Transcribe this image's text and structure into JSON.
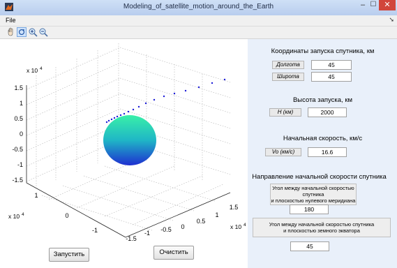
{
  "window": {
    "title": "Modeling_of_satellite_motion_around_the_Earth"
  },
  "menu": {
    "file": "File"
  },
  "toolbar": {
    "tools": [
      "hand-icon",
      "rotate3d-icon",
      "zoom-in-icon",
      "zoom-out-icon"
    ]
  },
  "launch_coords": {
    "heading": "Координаты запуска спутника, км",
    "longitude_label": "Долгота",
    "longitude_value": "45",
    "latitude_label": "Широта",
    "latitude_value": "45"
  },
  "height": {
    "heading": "Высота запуска, км",
    "label": "H (км)",
    "value": "2000"
  },
  "speed": {
    "heading": "Начальная скорость, км/с",
    "label": "Vo (км/с)",
    "value": "16.6"
  },
  "direction": {
    "heading": "Направление начальной скорости спутника",
    "meridian_line1": "Угол между начальной скоростью",
    "meridian_line2": "спутника",
    "meridian_line3": "и плоскостью нулевого меридиана",
    "meridian_value": "180",
    "equator_line1": "Угол между начальной скоростью спутника",
    "equator_line2": "и плоскостью земного экватора",
    "equator_value": "45"
  },
  "buttons": {
    "start": "Запустить",
    "clear": "Очистить"
  },
  "plot": {
    "z_exponent": "x 10",
    "z_exponent_power": "4",
    "z_ticks": [
      "1.5",
      "1",
      "0.5",
      "0",
      "-0.5",
      "-1",
      "-1.5"
    ],
    "y_exponent": "x 10",
    "y_exponent_power": "4",
    "y_ticks": [
      "1",
      "0",
      "-1"
    ],
    "x_exponent": "x 10",
    "x_exponent_power": "4",
    "x_ticks": [
      "1.5",
      "1",
      "0.5",
      "0",
      "-0.5",
      "-1",
      "-1.5"
    ],
    "sphere_color_top": "#39f0a8",
    "sphere_color_bottom": "#1e2fd0"
  }
}
